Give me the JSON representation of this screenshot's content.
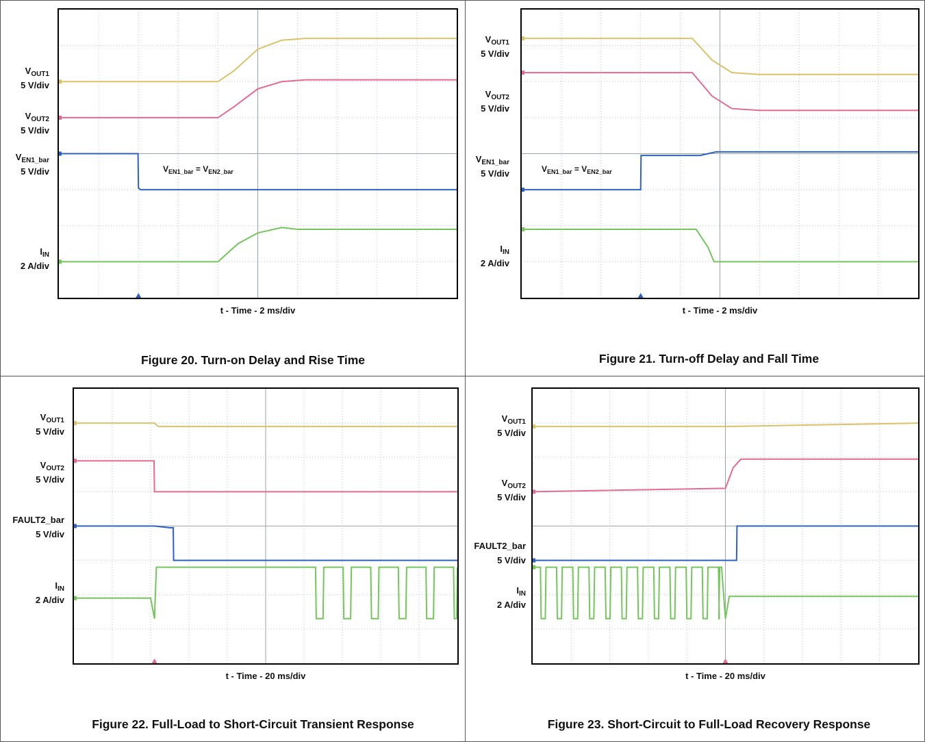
{
  "colors": {
    "ch1": "#d9c26a",
    "ch2": "#e46b8f",
    "ch3": "#2c62c4",
    "ch4": "#72c65a",
    "grid": "#bcc4cc"
  },
  "panels": [
    {
      "caption": "Figure 20. Turn-on Delay and Rise Time",
      "xlabel": "t - Time - 2 ms/div",
      "labels": [
        {
          "main": "V",
          "sub": "OUT1",
          "scale": "5 V/div"
        },
        {
          "main": "V",
          "sub": "OUT2",
          "scale": "5 V/div"
        },
        {
          "main": "V",
          "sub": "EN1_bar",
          "scale": "5 V/div"
        },
        {
          "main": "I",
          "sub": "IN",
          "scale": "2 A/div"
        }
      ],
      "annotation": {
        "a": "V",
        "a_sub": "EN1_bar",
        "eq": " = ",
        "b": "V",
        "b_sub": "EN2_bar"
      }
    },
    {
      "caption": "Figure 21. Turn-off Delay and Fall Time",
      "xlabel": "t - Time - 2 ms/div",
      "labels": [
        {
          "main": "V",
          "sub": "OUT1",
          "scale": "5 V/div"
        },
        {
          "main": "V",
          "sub": "OUT2",
          "scale": "5 V/div"
        },
        {
          "main": "V",
          "sub": "EN1_bar",
          "scale": "5 V/div"
        },
        {
          "main": "I",
          "sub": "IN",
          "scale": "2 A/div"
        }
      ],
      "annotation": {
        "a": "V",
        "a_sub": "EN1_bar",
        "eq": " = ",
        "b": "V",
        "b_sub": "EN2_bar"
      }
    },
    {
      "caption": "Figure 22. Full-Load to Short-Circuit Transient Response",
      "xlabel": "t - Time - 20 ms/div",
      "labels": [
        {
          "main": "V",
          "sub": "OUT1",
          "scale": "5 V/div"
        },
        {
          "main": "V",
          "sub": "OUT2",
          "scale": "5 V/div"
        },
        {
          "main": "FAULT2_bar",
          "sub": "",
          "scale": "5 V/div"
        },
        {
          "main": "I",
          "sub": "IN",
          "scale": "2 A/div"
        }
      ]
    },
    {
      "caption": "Figure 23. Short-Circuit to Full-Load Recovery Response",
      "xlabel": "t - Time - 20 ms/div",
      "labels": [
        {
          "main": "V",
          "sub": "OUT1",
          "scale": "5 V/div"
        },
        {
          "main": "V",
          "sub": "OUT2",
          "scale": "5 V/div"
        },
        {
          "main": "FAULT2_bar",
          "sub": "",
          "scale": "5 V/div"
        },
        {
          "main": "I",
          "sub": "IN",
          "scale": "2 A/div"
        }
      ]
    }
  ],
  "chart_data": [
    {
      "type": "line",
      "title": "Figure 20. Turn-on Delay and Rise Time",
      "xlabel": "t - Time - 2 ms/div",
      "xlim": [
        0,
        10
      ],
      "ylim": [
        0,
        8
      ],
      "grid": true,
      "series": [
        {
          "name": "VOUT1",
          "x": [
            0,
            4.0,
            4.4,
            5.0,
            5.6,
            6.2,
            10
          ],
          "y": [
            6.0,
            6.0,
            6.3,
            6.9,
            7.15,
            7.2,
            7.2
          ]
        },
        {
          "name": "VOUT2",
          "x": [
            0,
            4.0,
            4.4,
            5.0,
            5.6,
            6.2,
            10
          ],
          "y": [
            5.0,
            5.0,
            5.3,
            5.8,
            6.0,
            6.05,
            6.05
          ]
        },
        {
          "name": "VEN1_bar",
          "x": [
            0,
            1.99,
            2.0,
            2.05,
            10
          ],
          "y": [
            4.0,
            4.0,
            3.05,
            3.0,
            3.0
          ]
        },
        {
          "name": "IIN",
          "x": [
            0,
            4.0,
            4.5,
            5.0,
            5.6,
            6.0,
            10
          ],
          "y": [
            1.0,
            1.0,
            1.5,
            1.8,
            1.95,
            1.9,
            1.9
          ]
        }
      ]
    },
    {
      "type": "line",
      "title": "Figure 21. Turn-off Delay and Fall Time",
      "xlabel": "t - Time - 2 ms/div",
      "xlim": [
        0,
        10
      ],
      "ylim": [
        0,
        8
      ],
      "grid": true,
      "series": [
        {
          "name": "VOUT1",
          "x": [
            0,
            4.3,
            4.8,
            5.3,
            6.0,
            10
          ],
          "y": [
            7.2,
            7.2,
            6.6,
            6.25,
            6.2,
            6.2
          ]
        },
        {
          "name": "VOUT2",
          "x": [
            0,
            4.3,
            4.8,
            5.3,
            6.0,
            10
          ],
          "y": [
            6.25,
            6.25,
            5.6,
            5.25,
            5.2,
            5.2
          ]
        },
        {
          "name": "VEN1_bar",
          "x": [
            0,
            3.0,
            3.01,
            4.5,
            4.9,
            10
          ],
          "y": [
            3.0,
            3.0,
            3.95,
            3.95,
            4.05,
            4.05
          ]
        },
        {
          "name": "IIN",
          "x": [
            0,
            4.4,
            4.7,
            4.85,
            10
          ],
          "y": [
            1.9,
            1.9,
            1.4,
            1.0,
            1.0
          ]
        }
      ]
    },
    {
      "type": "line",
      "title": "Figure 22. Full-Load to Short-Circuit Transient Response",
      "xlabel": "t - Time - 20 ms/div",
      "xlim": [
        0,
        10
      ],
      "ylim": [
        0,
        8
      ],
      "grid": true,
      "series": [
        {
          "name": "VOUT1",
          "x": [
            0,
            2.1,
            2.2,
            6.0,
            10
          ],
          "y": [
            7.0,
            7.0,
            6.9,
            6.9,
            6.9
          ]
        },
        {
          "name": "VOUT2",
          "x": [
            0,
            2.09,
            2.1,
            10
          ],
          "y": [
            5.9,
            5.9,
            5.0,
            5.0
          ]
        },
        {
          "name": "FAULT2_bar",
          "x": [
            0,
            2.1,
            2.5,
            2.59,
            2.6,
            10
          ],
          "y": [
            4.0,
            4.0,
            3.95,
            3.95,
            3.0,
            3.0
          ]
        },
        {
          "name": "IIN",
          "x": [
            0,
            2.0,
            2.1,
            2.15,
            6.0,
            10
          ],
          "y": [
            1.9,
            1.9,
            1.3,
            2.8,
            2.8,
            2.8
          ]
        }
      ]
    },
    {
      "type": "line",
      "title": "Figure 23. Short-Circuit to Full-Load Recovery Response",
      "xlabel": "t - Time - 20 ms/div",
      "xlim": [
        0,
        10
      ],
      "ylim": [
        0,
        8
      ],
      "grid": true,
      "series": [
        {
          "name": "VOUT1",
          "x": [
            0,
            5.0,
            10
          ],
          "y": [
            6.9,
            6.9,
            7.0
          ]
        },
        {
          "name": "VOUT2",
          "x": [
            0,
            5.0,
            5.2,
            5.4,
            10
          ],
          "y": [
            5.0,
            5.1,
            5.7,
            5.95,
            5.95
          ]
        },
        {
          "name": "FAULT2_bar",
          "x": [
            0,
            5.29,
            5.3,
            10
          ],
          "y": [
            3.0,
            3.0,
            4.0,
            4.0
          ]
        },
        {
          "name": "IIN",
          "x": [
            0,
            4.9,
            5.0,
            5.1,
            10
          ],
          "y": [
            2.8,
            2.8,
            1.3,
            1.95,
            1.95
          ]
        }
      ]
    }
  ]
}
